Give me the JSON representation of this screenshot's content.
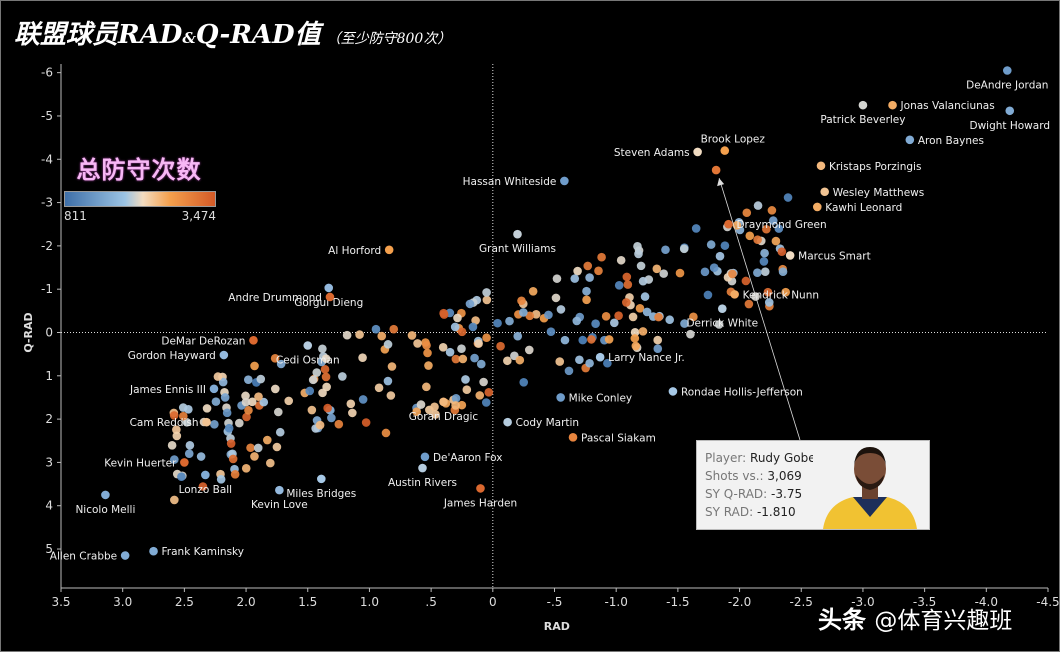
{
  "title": {
    "main_a": "联盟球员RAD",
    "amp": "&",
    "main_b": "Q-RAD值",
    "sub": "（至少防守800次）"
  },
  "legend": {
    "title": "总防守次数",
    "min": "811",
    "max": "3,474"
  },
  "tooltip": {
    "player_key": "Player:",
    "player_val": "Rudy Gobert",
    "shots_key": "Shots vs.:",
    "shots_val": "3,069",
    "qrad_key": "SY Q-RAD:",
    "qrad_val": "-3.75",
    "rad_key": "SY RAD:",
    "rad_val": "-1.810"
  },
  "watermark": {
    "brand": "头条",
    "handle": "@体育兴趣班"
  },
  "colors": {
    "low": "#4a7fb8",
    "mid_low": "#a6c8e6",
    "mid": "#f1dcc2",
    "mid_high": "#f4a04d",
    "high": "#d45a27"
  },
  "chart_data": {
    "type": "scatter",
    "title": "联盟球员RAD&Q-RAD值",
    "xlabel": "RAD",
    "ylabel": "Q-RAD",
    "xlim": [
      3.5,
      -4.5
    ],
    "ylim": [
      -6.2,
      5.9
    ],
    "x_ticks": [
      3.5,
      3.0,
      2.5,
      2.0,
      1.5,
      1.0,
      0.5,
      0.0,
      -0.5,
      -1.0,
      -1.5,
      -2.0,
      -2.5,
      -3.0,
      -3.5,
      -4.0,
      -4.5
    ],
    "x_tick_labels": [
      "3.5",
      "3.0",
      "2.5",
      "2.0",
      "1.5",
      "1.0",
      ".5",
      "0",
      "-.5",
      "-1.0",
      "-1.5",
      "-2.0",
      "-2.5",
      "-3.0",
      "-3.5",
      "-4.0",
      "-4.5"
    ],
    "y_ticks": [
      -6,
      -5,
      -4,
      -3,
      -2,
      -1,
      0,
      1,
      2,
      3,
      4,
      5
    ],
    "y_tick_labels": [
      "-6",
      "-5",
      "-4",
      "-3",
      "-2",
      "-1",
      "0",
      "1",
      "2",
      "3",
      "4",
      "5"
    ],
    "color_scale": "total defended possessions 811 - 3,474",
    "labeled_points": [
      {
        "name": "DeAndre Jordan",
        "x": -4.17,
        "y": -6.05,
        "c": 0.1
      },
      {
        "name": "Jonas Valanciunas",
        "x": -3.24,
        "y": -5.25,
        "c": 0.7
      },
      {
        "name": "Dwight Howard",
        "x": -4.19,
        "y": -5.12,
        "c": 0.15
      },
      {
        "name": "Patrick Beverley",
        "x": -3.0,
        "y": -5.25,
        "c": 0.4
      },
      {
        "name": "Aron Baynes",
        "x": -3.38,
        "y": -4.45,
        "c": 0.15
      },
      {
        "name": "Brook Lopez",
        "x": -1.88,
        "y": -4.2,
        "c": 0.75
      },
      {
        "name": "Steven Adams",
        "x": -1.66,
        "y": -4.17,
        "c": 0.5
      },
      {
        "name": "Kristaps Porzingis",
        "x": -2.66,
        "y": -3.85,
        "c": 0.65
      },
      {
        "name": "Hassan Whiteside",
        "x": -0.58,
        "y": -3.5,
        "c": 0.1
      },
      {
        "name": "Wesley Matthews",
        "x": -2.69,
        "y": -3.25,
        "c": 0.6
      },
      {
        "name": "Kawhi Leonard",
        "x": -2.63,
        "y": -2.9,
        "c": 0.7
      },
      {
        "name": "Draymond Green",
        "x": -1.91,
        "y": -2.5,
        "c": 0.95
      },
      {
        "name": "Grant Williams",
        "x": -0.2,
        "y": -2.27,
        "c": 0.35
      },
      {
        "name": "Marcus Smart",
        "x": -2.41,
        "y": -1.78,
        "c": 0.5
      },
      {
        "name": "Al Horford",
        "x": 0.84,
        "y": -1.91,
        "c": 0.75
      },
      {
        "name": "Gorgui Dieng",
        "x": 1.33,
        "y": -1.03,
        "c": 0.2
      },
      {
        "name": "Andre Drummond",
        "x": 1.32,
        "y": -0.82,
        "c": 0.95
      },
      {
        "name": "Kendrick Nunn",
        "x": -1.96,
        "y": -0.88,
        "c": 0.7
      },
      {
        "name": "Derrick White",
        "x": -1.86,
        "y": -0.55,
        "c": 0.3
      },
      {
        "name": "DeMar DeRozan",
        "x": 1.94,
        "y": 0.18,
        "c": 0.95
      },
      {
        "name": "Cedi Osman",
        "x": 1.5,
        "y": 0.3,
        "c": 0.3
      },
      {
        "name": "Larry Nance Jr.",
        "x": -0.87,
        "y": 0.57,
        "c": 0.25
      },
      {
        "name": "Gordon Hayward",
        "x": 2.18,
        "y": 0.52,
        "c": 0.2
      },
      {
        "name": "James Ennis III",
        "x": 2.26,
        "y": 1.3,
        "c": 0.15
      },
      {
        "name": "Mike Conley",
        "x": -0.55,
        "y": 1.5,
        "c": 0.1
      },
      {
        "name": "Rondae Hollis-Jefferson",
        "x": -1.46,
        "y": 1.36,
        "c": 0.25
      },
      {
        "name": "Goran Dragic",
        "x": 0.4,
        "y": 1.6,
        "c": 0.65
      },
      {
        "name": "Cam Reddish",
        "x": 2.32,
        "y": 2.07,
        "c": 0.6
      },
      {
        "name": "Cody Martin",
        "x": -0.12,
        "y": 2.07,
        "c": 0.3
      },
      {
        "name": "Pascal Siakam",
        "x": -0.65,
        "y": 2.42,
        "c": 0.85
      },
      {
        "name": "Kevin Huerter",
        "x": 2.5,
        "y": 3.0,
        "c": 0.95
      },
      {
        "name": "De'Aaron Fox",
        "x": 0.55,
        "y": 2.87,
        "c": 0.1
      },
      {
        "name": "Austin Rivers",
        "x": 0.57,
        "y": 3.13,
        "c": 0.3
      },
      {
        "name": "Lonzo Ball",
        "x": 2.33,
        "y": 3.29,
        "c": 0.15
      },
      {
        "name": "Miles Bridges",
        "x": 1.39,
        "y": 3.38,
        "c": 0.25
      },
      {
        "name": "James Harden",
        "x": 0.1,
        "y": 3.6,
        "c": 0.95
      },
      {
        "name": "Kevin Love",
        "x": 1.73,
        "y": 3.64,
        "c": 0.2
      },
      {
        "name": "Nicolo Melli",
        "x": 3.14,
        "y": 3.75,
        "c": 0.15
      },
      {
        "name": "Allen Crabbe",
        "x": 2.98,
        "y": 5.15,
        "c": 0.15
      },
      {
        "name": "Frank Kaminsky",
        "x": 2.75,
        "y": 5.05,
        "c": 0.15
      },
      {
        "name": "Rudy Gobert",
        "x": -1.81,
        "y": -3.75,
        "c": 0.9
      }
    ]
  }
}
